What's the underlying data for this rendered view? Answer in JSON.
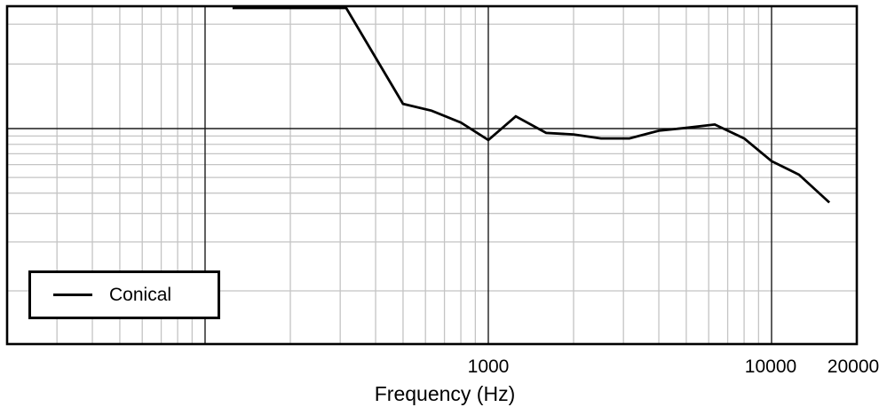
{
  "chart_data": {
    "type": "line",
    "title": "",
    "xlabel": "Frequency (Hz)",
    "ylabel": "",
    "grid": true,
    "x_axis": {
      "scale": "log",
      "min": 20,
      "max": 20000,
      "tick_values": [
        1000,
        10000,
        20000
      ],
      "tick_labels": [
        "1000",
        "10000",
        "20000"
      ],
      "major_gridline_values": [
        100,
        1000,
        10000
      ],
      "minor_gridline_values": [
        30,
        40,
        50,
        60,
        70,
        80,
        90,
        200,
        300,
        400,
        500,
        600,
        700,
        800,
        900,
        2000,
        3000,
        4000,
        5000,
        6000,
        7000,
        8000,
        9000
      ]
    },
    "y_axis": {
      "scale": "log",
      "labels_visible": false,
      "min": 0.047,
      "max": 5.7,
      "reference_line_value": 1.0,
      "minor_gridline_values": [
        4.4,
        2.5,
        0.9,
        0.8,
        0.7,
        0.6,
        0.5,
        0.4,
        0.3,
        0.2,
        0.1
      ],
      "note": "y axis has gridlines but no visible labels; values normalized to the solid reference line = 1.0"
    },
    "legend": {
      "position": "bottom-left",
      "entries": [
        "Conical"
      ]
    },
    "series": [
      {
        "name": "Conical",
        "clipped_above": 5.6,
        "x": [
          125,
          315,
          500,
          630,
          800,
          1000,
          1250,
          1600,
          2000,
          2500,
          3150,
          4000,
          5000,
          6300,
          8000,
          10000,
          12500,
          16000
        ],
        "y": [
          5.6,
          5.6,
          1.42,
          1.29,
          1.09,
          0.85,
          1.19,
          0.94,
          0.92,
          0.87,
          0.87,
          0.97,
          1.01,
          1.06,
          0.87,
          0.63,
          0.52,
          0.35
        ]
      }
    ]
  },
  "labels": {
    "x_tick_1": "1000",
    "x_tick_2": "10000",
    "x_tick_3": "20000",
    "x_label": "Frequency (Hz)",
    "legend_conical": "Conical"
  },
  "colors": {
    "background": "#ffffff",
    "curve": "#000000",
    "border": "#000000",
    "major_grid": "#1c1c1c",
    "minor_grid": "#c4c4c4",
    "text": "#000000"
  }
}
